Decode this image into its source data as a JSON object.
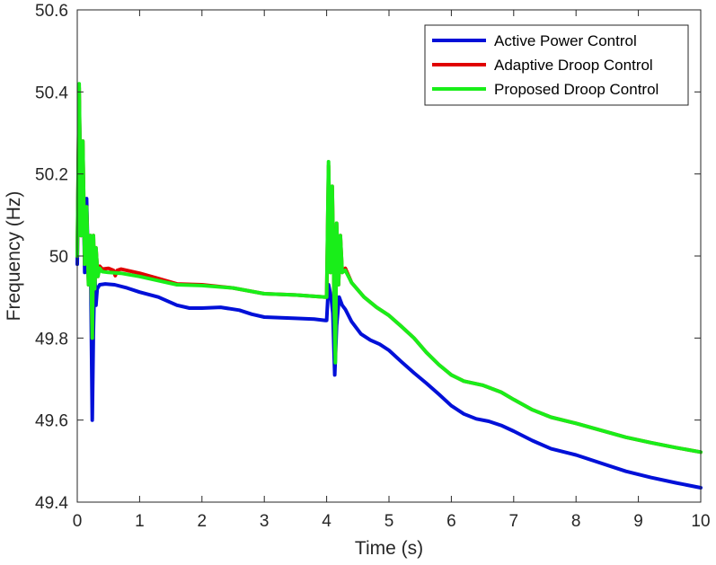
{
  "chart_data": {
    "type": "line",
    "title": "",
    "xlabel": "Time (s)",
    "ylabel": "Frequency (Hz)",
    "xlim": [
      0,
      10
    ],
    "ylim": [
      49.4,
      50.6
    ],
    "x_ticks": [
      "0",
      "1",
      "2",
      "3",
      "4",
      "5",
      "6",
      "7",
      "8",
      "9",
      "10"
    ],
    "y_ticks": [
      "49.4",
      "49.6",
      "49.8",
      "50",
      "50.2",
      "50.4",
      "50.6"
    ],
    "grid": false,
    "legend_position": "top-right",
    "series": [
      {
        "name": "Active Power Control",
        "color": "#0010d8",
        "points": [
          [
            0,
            49.98
          ],
          [
            0.03,
            50.38
          ],
          [
            0.06,
            50.1
          ],
          [
            0.09,
            50.24
          ],
          [
            0.12,
            49.96
          ],
          [
            0.15,
            50.14
          ],
          [
            0.18,
            49.94
          ],
          [
            0.21,
            50.04
          ],
          [
            0.24,
            49.6
          ],
          [
            0.26,
            49.82
          ],
          [
            0.28,
            49.96
          ],
          [
            0.3,
            49.88
          ],
          [
            0.32,
            49.92
          ],
          [
            0.36,
            49.93
          ],
          [
            0.45,
            49.932
          ],
          [
            0.6,
            49.93
          ],
          [
            0.8,
            49.922
          ],
          [
            1.0,
            49.912
          ],
          [
            1.3,
            49.9
          ],
          [
            1.6,
            49.88
          ],
          [
            1.8,
            49.873
          ],
          [
            2.0,
            49.873
          ],
          [
            2.3,
            49.875
          ],
          [
            2.6,
            49.868
          ],
          [
            2.8,
            49.858
          ],
          [
            3.0,
            49.851
          ],
          [
            3.5,
            49.848
          ],
          [
            3.8,
            49.846
          ],
          [
            3.98,
            49.843
          ],
          [
            4.0,
            49.843
          ],
          [
            4.03,
            49.93
          ],
          [
            4.07,
            49.9
          ],
          [
            4.1,
            49.86
          ],
          [
            4.13,
            49.71
          ],
          [
            4.16,
            49.83
          ],
          [
            4.2,
            49.9
          ],
          [
            4.25,
            49.88
          ],
          [
            4.3,
            49.87
          ],
          [
            4.4,
            49.84
          ],
          [
            4.55,
            49.81
          ],
          [
            4.7,
            49.795
          ],
          [
            4.85,
            49.785
          ],
          [
            5.0,
            49.77
          ],
          [
            5.2,
            49.742
          ],
          [
            5.4,
            49.715
          ],
          [
            5.6,
            49.69
          ],
          [
            5.8,
            49.663
          ],
          [
            6.0,
            49.635
          ],
          [
            6.2,
            49.615
          ],
          [
            6.4,
            49.603
          ],
          [
            6.6,
            49.597
          ],
          [
            6.8,
            49.587
          ],
          [
            7.0,
            49.573
          ],
          [
            7.3,
            49.55
          ],
          [
            7.6,
            49.53
          ],
          [
            8.0,
            49.515
          ],
          [
            8.4,
            49.495
          ],
          [
            8.8,
            49.475
          ],
          [
            9.2,
            49.46
          ],
          [
            9.6,
            49.447
          ],
          [
            10.0,
            49.435
          ]
        ]
      },
      {
        "name": "Adaptive Droop Control",
        "color": "#e00000",
        "points": [
          [
            0,
            50.0
          ],
          [
            0.03,
            50.41
          ],
          [
            0.06,
            50.05
          ],
          [
            0.09,
            50.28
          ],
          [
            0.12,
            49.98
          ],
          [
            0.15,
            50.12
          ],
          [
            0.18,
            49.93
          ],
          [
            0.21,
            50.05
          ],
          [
            0.24,
            49.8
          ],
          [
            0.26,
            50.05
          ],
          [
            0.28,
            49.92
          ],
          [
            0.3,
            50.02
          ],
          [
            0.33,
            49.95
          ],
          [
            0.36,
            49.975
          ],
          [
            0.4,
            49.968
          ],
          [
            0.5,
            49.97
          ],
          [
            0.58,
            49.965
          ],
          [
            0.61,
            49.952
          ],
          [
            0.64,
            49.965
          ],
          [
            0.7,
            49.968
          ],
          [
            1.0,
            49.958
          ],
          [
            1.3,
            49.945
          ],
          [
            1.6,
            49.932
          ],
          [
            2.0,
            49.93
          ],
          [
            2.5,
            49.922
          ],
          [
            3.0,
            49.908
          ],
          [
            3.5,
            49.905
          ],
          [
            3.98,
            49.9
          ],
          [
            4.0,
            49.9
          ],
          [
            4.03,
            50.22
          ],
          [
            4.06,
            49.96
          ],
          [
            4.09,
            50.17
          ],
          [
            4.12,
            49.9
          ],
          [
            4.14,
            49.76
          ],
          [
            4.16,
            50.08
          ],
          [
            4.19,
            49.93
          ],
          [
            4.22,
            50.05
          ],
          [
            4.25,
            49.96
          ],
          [
            4.3,
            49.97
          ],
          [
            4.4,
            49.935
          ],
          [
            4.6,
            49.9
          ],
          [
            4.8,
            49.875
          ],
          [
            5.0,
            49.855
          ],
          [
            5.2,
            49.828
          ],
          [
            5.4,
            49.8
          ],
          [
            5.6,
            49.765
          ],
          [
            5.8,
            49.735
          ],
          [
            6.0,
            49.71
          ],
          [
            6.2,
            49.695
          ],
          [
            6.5,
            49.685
          ],
          [
            6.8,
            49.668
          ],
          [
            7.0,
            49.65
          ],
          [
            7.3,
            49.625
          ],
          [
            7.6,
            49.607
          ],
          [
            8.0,
            49.592
          ],
          [
            8.4,
            49.575
          ],
          [
            8.8,
            49.558
          ],
          [
            9.2,
            49.545
          ],
          [
            9.6,
            49.533
          ],
          [
            10.0,
            49.522
          ]
        ]
      },
      {
        "name": "Proposed Droop Control",
        "color": "#19ee19",
        "points": [
          [
            0,
            50.0
          ],
          [
            0.03,
            50.42
          ],
          [
            0.06,
            50.05
          ],
          [
            0.09,
            50.28
          ],
          [
            0.12,
            49.98
          ],
          [
            0.15,
            50.12
          ],
          [
            0.18,
            49.93
          ],
          [
            0.21,
            50.05
          ],
          [
            0.24,
            49.8
          ],
          [
            0.26,
            50.05
          ],
          [
            0.28,
            49.92
          ],
          [
            0.3,
            50.02
          ],
          [
            0.33,
            49.95
          ],
          [
            0.36,
            49.97
          ],
          [
            0.4,
            49.962
          ],
          [
            0.5,
            49.96
          ],
          [
            0.7,
            49.958
          ],
          [
            1.0,
            49.95
          ],
          [
            1.3,
            49.94
          ],
          [
            1.6,
            49.93
          ],
          [
            2.0,
            49.928
          ],
          [
            2.5,
            49.922
          ],
          [
            3.0,
            49.908
          ],
          [
            3.5,
            49.905
          ],
          [
            3.98,
            49.9
          ],
          [
            4.0,
            49.9
          ],
          [
            4.03,
            50.23
          ],
          [
            4.06,
            49.96
          ],
          [
            4.09,
            50.17
          ],
          [
            4.12,
            49.9
          ],
          [
            4.14,
            49.74
          ],
          [
            4.16,
            50.08
          ],
          [
            4.19,
            49.93
          ],
          [
            4.22,
            50.05
          ],
          [
            4.25,
            49.96
          ],
          [
            4.3,
            49.965
          ],
          [
            4.4,
            49.935
          ],
          [
            4.6,
            49.9
          ],
          [
            4.8,
            49.875
          ],
          [
            5.0,
            49.855
          ],
          [
            5.2,
            49.828
          ],
          [
            5.4,
            49.8
          ],
          [
            5.6,
            49.765
          ],
          [
            5.8,
            49.735
          ],
          [
            6.0,
            49.71
          ],
          [
            6.2,
            49.695
          ],
          [
            6.5,
            49.685
          ],
          [
            6.8,
            49.668
          ],
          [
            7.0,
            49.65
          ],
          [
            7.3,
            49.625
          ],
          [
            7.6,
            49.607
          ],
          [
            8.0,
            49.592
          ],
          [
            8.4,
            49.575
          ],
          [
            8.8,
            49.558
          ],
          [
            9.2,
            49.545
          ],
          [
            9.6,
            49.533
          ],
          [
            10.0,
            49.522
          ]
        ]
      }
    ]
  }
}
